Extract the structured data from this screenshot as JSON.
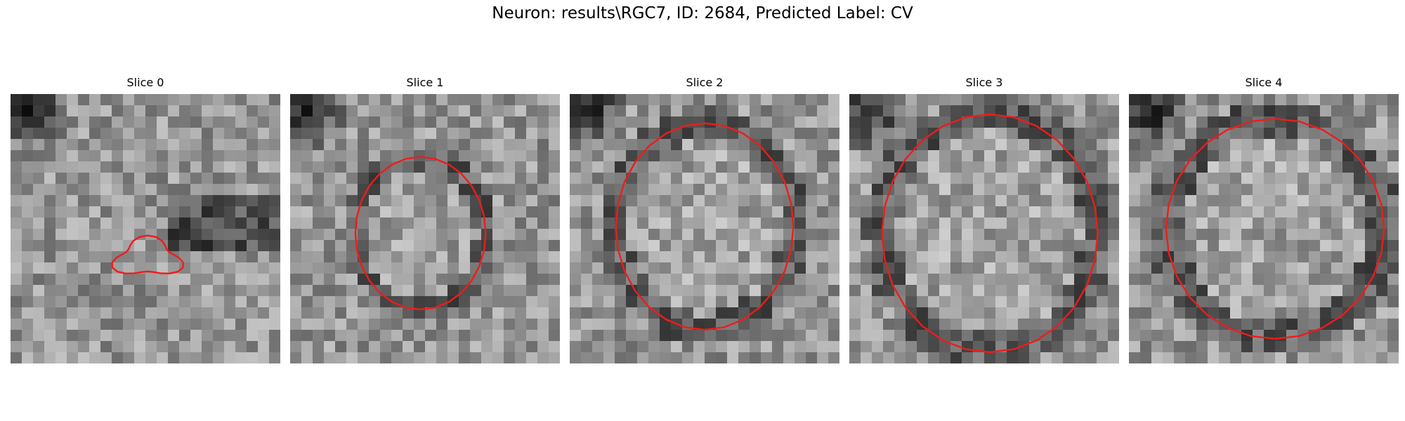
{
  "figure": {
    "title": "Neuron: results\\RGC7, ID: 2684, Predicted Label: CV"
  },
  "contour_color": "#ee1c1c",
  "panels": [
    {
      "title": "Slice 0",
      "contour_extent": 0.15,
      "seed": 11
    },
    {
      "title": "Slice 1",
      "contour_extent": 0.63,
      "seed": 23
    },
    {
      "title": "Slice 2",
      "contour_extent": 0.76,
      "seed": 37
    },
    {
      "title": "Slice 3",
      "contour_extent": 0.83,
      "seed": 51
    },
    {
      "title": "Slice 4",
      "contour_extent": 0.82,
      "seed": 67
    }
  ]
}
